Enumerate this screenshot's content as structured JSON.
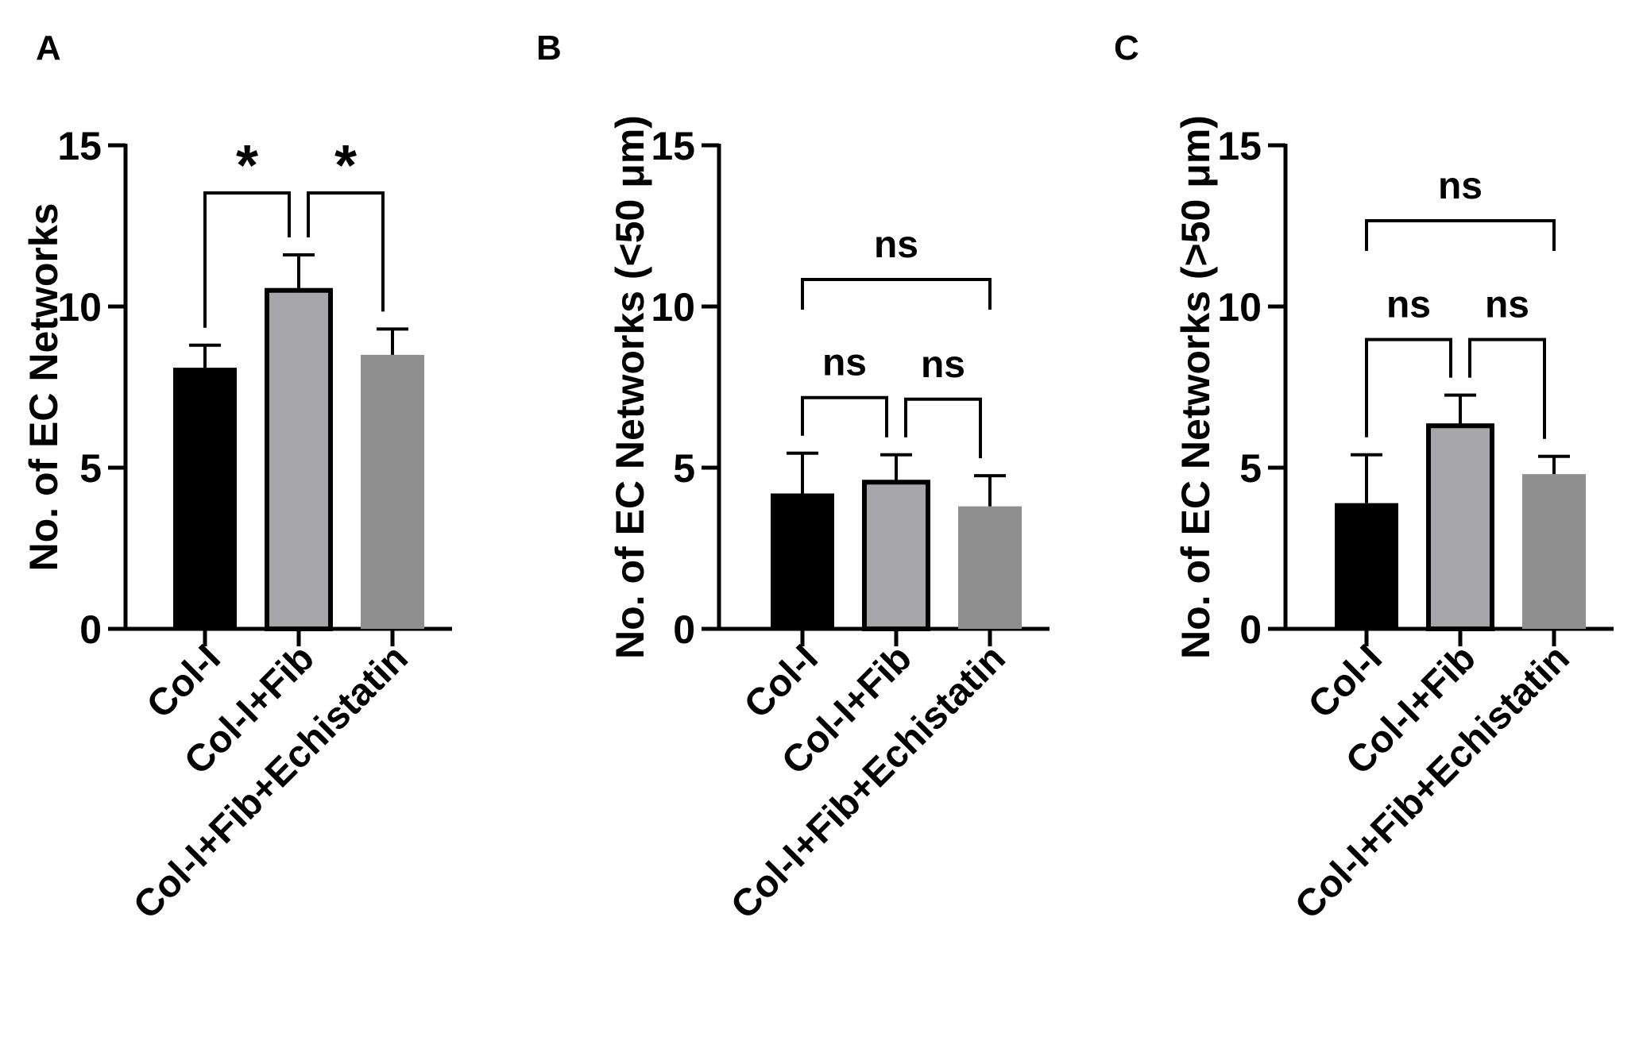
{
  "figure": {
    "panel_count": 3
  },
  "chart_data": [
    {
      "panel_label": "A",
      "type": "bar",
      "title": "",
      "xlabel": "",
      "ylabel": "No. of EC Networks",
      "ylim": [
        0,
        15
      ],
      "yticks": [
        "0",
        "5",
        "10",
        "15"
      ],
      "categories": [
        "Col-I",
        "Col-I+Fib",
        "Col-I+Fib+Echistatin"
      ],
      "values": [
        8.1,
        10.5,
        8.5
      ],
      "error": [
        0.7,
        1.1,
        0.8
      ],
      "bar_colors": [
        "#000000",
        "#a6a6ab",
        "#8f8f8f"
      ],
      "bar_outlined": [
        false,
        true,
        false
      ],
      "comparisons": [
        {
          "from": 0,
          "to": 1,
          "label": "*",
          "level": "low"
        },
        {
          "from": 1,
          "to": 2,
          "label": "*",
          "level": "low"
        }
      ]
    },
    {
      "panel_label": "B",
      "type": "bar",
      "title": "",
      "xlabel": "",
      "ylabel": "No. of EC Networks (<50 μm)",
      "ylim": [
        0,
        15
      ],
      "yticks": [
        "0",
        "5",
        "10",
        "15"
      ],
      "categories": [
        "Col-I",
        "Col-I+Fib",
        "Col-I+Fib+Echistatin"
      ],
      "values": [
        4.2,
        4.55,
        3.8
      ],
      "error": [
        1.25,
        0.85,
        0.95
      ],
      "bar_colors": [
        "#000000",
        "#a6a6ab",
        "#8f8f8f"
      ],
      "bar_outlined": [
        false,
        true,
        false
      ],
      "comparisons": [
        {
          "from": 0,
          "to": 1,
          "label": "ns",
          "level": "low"
        },
        {
          "from": 1,
          "to": 2,
          "label": "ns",
          "level": "low"
        },
        {
          "from": 0,
          "to": 2,
          "label": "ns",
          "level": "high"
        }
      ]
    },
    {
      "panel_label": "C",
      "type": "bar",
      "title": "",
      "xlabel": "",
      "ylabel": "No. of EC Networks (>50 μm)",
      "ylim": [
        0,
        15
      ],
      "yticks": [
        "0",
        "5",
        "10",
        "15"
      ],
      "categories": [
        "Col-I",
        "Col-I+Fib",
        "Col-I+Fib+Echistatin"
      ],
      "values": [
        3.9,
        6.3,
        4.8
      ],
      "error": [
        1.5,
        0.95,
        0.55
      ],
      "bar_colors": [
        "#000000",
        "#a6a6ab",
        "#8f8f8f"
      ],
      "bar_outlined": [
        false,
        true,
        false
      ],
      "comparisons": [
        {
          "from": 0,
          "to": 1,
          "label": "ns",
          "level": "low"
        },
        {
          "from": 1,
          "to": 2,
          "label": "ns",
          "level": "low"
        },
        {
          "from": 0,
          "to": 2,
          "label": "ns",
          "level": "high"
        }
      ]
    }
  ]
}
